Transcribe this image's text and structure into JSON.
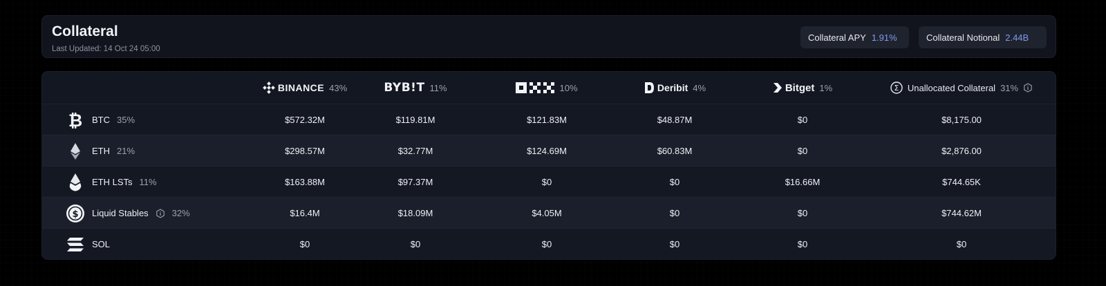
{
  "header": {
    "title": "Collateral",
    "last_updated": "Last Updated: 14 Oct 24 05:00",
    "stats": [
      {
        "label": "Collateral APY",
        "value": "1.91%"
      },
      {
        "label": "Collateral Notional",
        "value": "2.44B"
      }
    ]
  },
  "columns": [
    {
      "name": "BINANCE",
      "pct": "43%",
      "icon": "binance-icon"
    },
    {
      "name": "BYB!T",
      "pct": "11%",
      "icon": "bybit-logo"
    },
    {
      "name": "OKX",
      "pct": "10%",
      "icon": "okx-logo"
    },
    {
      "name": "Deribit",
      "pct": "4%",
      "icon": "deribit-icon"
    },
    {
      "name": "Bitget",
      "pct": "1%",
      "icon": "bitget-icon"
    },
    {
      "name": "Unallocated Collateral",
      "pct": "31%",
      "icon": "unallocated-icon"
    }
  ],
  "rows": [
    {
      "asset": "BTC",
      "pct": "35%",
      "icon": "bitcoin-icon",
      "values": [
        "$572.32M",
        "$119.81M",
        "$121.83M",
        "$48.87M",
        "$0",
        "$8,175.00"
      ]
    },
    {
      "asset": "ETH",
      "pct": "21%",
      "icon": "ethereum-icon",
      "values": [
        "$298.57M",
        "$32.77M",
        "$124.69M",
        "$60.83M",
        "$0",
        "$2,876.00"
      ]
    },
    {
      "asset": "ETH LSTs",
      "pct": "11%",
      "icon": "eth-lst-icon",
      "values": [
        "$163.88M",
        "$97.37M",
        "$0",
        "$0",
        "$16.66M",
        "$744.65K"
      ]
    },
    {
      "asset": "Liquid Stables",
      "pct": "32%",
      "icon": "usdc-icon",
      "values": [
        "$16.4M",
        "$18.09M",
        "$4.05M",
        "$0",
        "$0",
        "$744.62M"
      ]
    },
    {
      "asset": "SOL",
      "pct": "",
      "icon": "solana-icon",
      "values": [
        "$0",
        "$0",
        "$0",
        "$0",
        "$0",
        "$0"
      ]
    }
  ],
  "colors": {
    "background": "#000000",
    "card": "#11141d",
    "accent": "#7d9bf0",
    "row_alt": "#1a1f2b"
  }
}
